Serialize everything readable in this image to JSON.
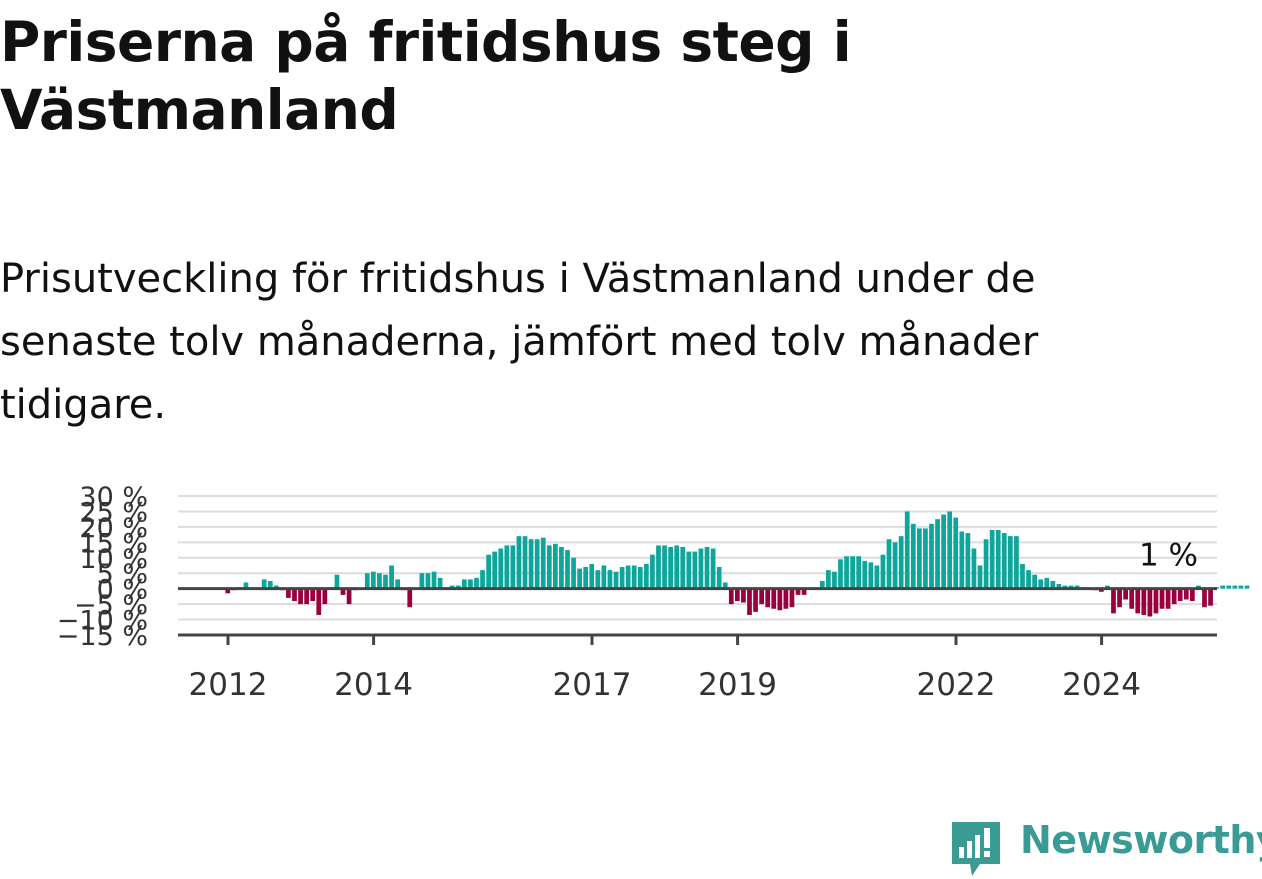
{
  "title": "Priserna på fritidshus steg i Västmanland",
  "subtitle": "Prisutveckling för fritidshus i Västmanland under de senaste tolv månaderna, jämfört med tolv månader tidigare.",
  "brand": {
    "name": "Newsworthy",
    "icon": "newsworthy-logo-icon",
    "color": "#3a9a94"
  },
  "chart_data": {
    "type": "bar",
    "title": "",
    "xlabel": "",
    "ylabel": "",
    "ylim": [
      -15,
      30
    ],
    "y_ticks": [
      30,
      25,
      20,
      15,
      10,
      5,
      0,
      -5,
      -10,
      -15
    ],
    "y_tick_labels": [
      "30 %",
      "25 %",
      "20 %",
      "15 %",
      "10 %",
      "5 %",
      "0 %",
      "−5 %",
      "−10 %",
      "−15 %"
    ],
    "x_ticks": [
      "2012",
      "2014",
      "2017",
      "2019",
      "2022",
      "2024"
    ],
    "x_tick_positions": [
      2012,
      2014,
      2017,
      2019,
      2022,
      2024
    ],
    "grid": true,
    "x_start": 2011.33,
    "months_per_bar": 1,
    "positive_color": "#0ea59b",
    "negative_color": "#99003d",
    "end_label": "1 %",
    "values": [
      0,
      0,
      0,
      0,
      0,
      0,
      0,
      0,
      -1.5,
      -0.5,
      0.5,
      2,
      0.5,
      0.5,
      3,
      2.5,
      1,
      -0.5,
      -3,
      -4,
      -5,
      -5,
      -4,
      -8.5,
      -5,
      0.5,
      4.5,
      -2,
      -5,
      -0.5,
      0,
      5,
      5.5,
      5,
      4.5,
      7.5,
      3,
      -0.5,
      -6,
      0,
      5,
      5,
      5.5,
      3.5,
      0.5,
      1,
      1,
      3,
      3,
      3.5,
      6,
      11,
      12,
      13,
      14,
      14,
      17,
      17,
      16,
      16,
      16.5,
      14,
      14.5,
      13.5,
      12.5,
      10,
      6.5,
      7,
      8,
      6,
      7.5,
      6,
      5.5,
      7,
      7.5,
      7.5,
      7,
      8,
      11,
      14,
      14,
      13.5,
      14,
      13.5,
      12,
      12,
      13,
      13.5,
      13,
      7,
      2,
      -5,
      -4,
      -4.5,
      -8.5,
      -7.5,
      -5,
      -6,
      -6.5,
      -7,
      -6.5,
      -6,
      -2,
      -2,
      0,
      0,
      2.5,
      6,
      5.5,
      9.5,
      10.5,
      10.5,
      10.5,
      9,
      8.5,
      7.5,
      11,
      16,
      15,
      17,
      25,
      21,
      19.5,
      19.5,
      21,
      22.5,
      24,
      25,
      23,
      18.5,
      18,
      13,
      7.5,
      16,
      19,
      19,
      18,
      17,
      17,
      8,
      6,
      4.5,
      3,
      3.5,
      2.5,
      1.5,
      1,
      1,
      1,
      0.5,
      0,
      -0.5,
      -1,
      1,
      -8,
      -6,
      -3.5,
      -6.5,
      -8,
      -8.5,
      -9,
      -8,
      -6.5,
      -6.5,
      -5,
      -4,
      -3.5,
      -4,
      1,
      -6,
      -5.5,
      0.5,
      1,
      1,
      1,
      1,
      1
    ]
  }
}
